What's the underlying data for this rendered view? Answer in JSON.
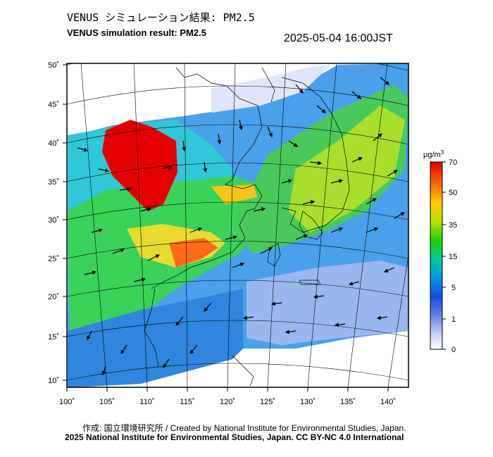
{
  "title_ja": "VENUS シミュレーション結果: PM2.5",
  "title_en": "VENUS simulation result: PM2.5",
  "timestamp": "2025-05-04 16:00JST",
  "credit_ja": "作成: 国立環境研究所 / Created by National Institute for Environmental Studies, Japan.",
  "credit_en": "2025 National Institute for Environmental Studies, Japan. CC BY-NC 4.0 International",
  "lat_labels": [
    "50˚",
    "45˚",
    "40˚",
    "35˚",
    "30˚",
    "25˚",
    "20˚",
    "15˚",
    "10˚"
  ],
  "lon_labels": [
    "100˚",
    "105˚",
    "110˚",
    "115˚",
    "120˚",
    "125˚",
    "130˚",
    "135˚",
    "140˚"
  ],
  "colorbar": {
    "unit_base": "μg/m",
    "unit_exp": "3",
    "ticks": [
      "70",
      "50",
      "35",
      "15",
      "5",
      "1",
      "0"
    ],
    "colors": [
      "#e00000",
      "#ff6a00",
      "#ffcc00",
      "#b6e000",
      "#20d000",
      "#00c8a0",
      "#0096e0",
      "#1050e0",
      "#6a7ee8",
      "#c8d0f4",
      "#ffffff"
    ]
  }
}
